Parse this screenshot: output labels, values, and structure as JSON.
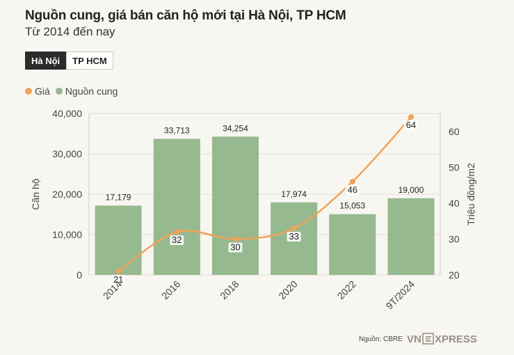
{
  "header": {
    "title": "Nguồn cung, giá bán căn hộ mới tại Hà Nội, TP HCM",
    "subtitle": "Từ 2014 đến nay"
  },
  "tabs": [
    {
      "label": "Hà Nội",
      "active": true
    },
    {
      "label": "TP HCM",
      "active": false
    }
  ],
  "legend": {
    "price_label": "Giá",
    "supply_label": "Nguồn cung",
    "price_color": "#f0a35a",
    "supply_color": "#96b98f"
  },
  "source": {
    "label": "Nguồn: CBRE",
    "brand_left": "VN",
    "brand_right": "XPRESS"
  },
  "chart_data": {
    "type": "bar",
    "title": "Nguồn cung, giá bán căn hộ mới tại Hà Nội, TP HCM",
    "categories": [
      "2014",
      "2016",
      "2018",
      "2020",
      "2022",
      "9T/2024"
    ],
    "series": [
      {
        "name": "Nguồn cung",
        "type": "bar",
        "axis": "left",
        "values": [
          17179,
          33713,
          34254,
          17974,
          15053,
          19000
        ],
        "labels": [
          "17,179",
          "33,713",
          "34,254",
          "17,974",
          "15,053",
          "19,000"
        ]
      },
      {
        "name": "Giá",
        "type": "line",
        "axis": "right",
        "values": [
          21,
          32,
          30,
          33,
          46,
          64
        ],
        "labels": [
          "21",
          "32",
          "30",
          "33",
          "46",
          "64"
        ]
      }
    ],
    "ylabel_left": "Căn hộ",
    "ylabel_right": "Triệu đồng/m2",
    "ylim_left": [
      0,
      40000
    ],
    "ylim_right": [
      20,
      65
    ],
    "yticks_left": [
      "0",
      "10,000",
      "20,000",
      "30,000",
      "40,000"
    ],
    "yticks_right": [
      "20",
      "30",
      "40",
      "50",
      "60"
    ],
    "grid": true
  }
}
